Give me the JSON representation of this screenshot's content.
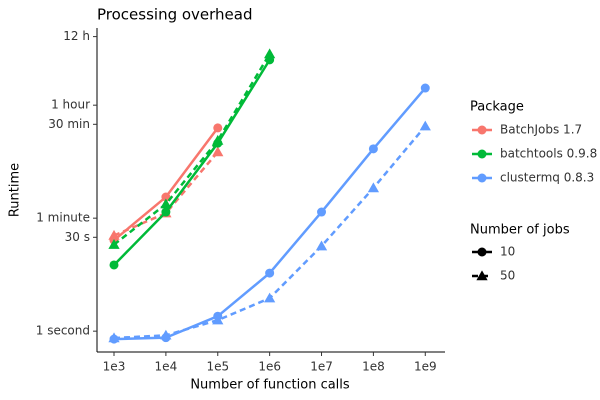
{
  "chart_data": {
    "type": "line",
    "title": "Processing overhead",
    "x_label": "Number of function calls",
    "y_label": "Runtime",
    "log_x": true,
    "log_y": true,
    "x": [
      1000,
      10000,
      100000,
      1000000,
      10000000,
      100000000,
      1000000000
    ],
    "xlim": [
      470,
      2400000000
    ],
    "xticks": [
      {
        "value": 1000,
        "label": "1e3"
      },
      {
        "value": 10000,
        "label": "1e4"
      },
      {
        "value": 100000,
        "label": "1e5"
      },
      {
        "value": 1000000,
        "label": "1e6"
      },
      {
        "value": 10000000,
        "label": "1e7"
      },
      {
        "value": 100000000,
        "label": "1e8"
      },
      {
        "value": 1000000000,
        "label": "1e9"
      }
    ],
    "ylim": [
      0.47,
      59000
    ],
    "yticks": [
      {
        "value": 1,
        "label": "1 second"
      },
      {
        "value": 30,
        "label": "30 s"
      },
      {
        "value": 60,
        "label": "1 minute"
      },
      {
        "value": 1800,
        "label": "30 min"
      },
      {
        "value": 3600,
        "label": "1 hour"
      },
      {
        "value": 43200,
        "label": "12 h"
      }
    ],
    "legend_title": "Package",
    "series": [
      {
        "name": "BatchJobs 1.7",
        "color": "#f8766d",
        "values_by_jobs": [
          [
            27,
            129,
            1580,
            null,
            null,
            null,
            null
          ],
          [
            32,
            72,
            660,
            null,
            null,
            null,
            null
          ]
        ]
      },
      {
        "name": "batchtools 0.9.8",
        "color": "#00ba38",
        "values_by_jobs": [
          [
            11,
            75,
            910,
            18600,
            null,
            null,
            null
          ],
          [
            23,
            100,
            1000,
            23000,
            null,
            null,
            null
          ]
        ]
      },
      {
        "name": "clustermq 0.8.3",
        "color": "#619cff",
        "values_by_jobs": [
          [
            0.75,
            0.79,
            1.72,
            8.2,
            75,
            740,
            6700
          ],
          [
            0.78,
            0.86,
            1.49,
            3.3,
            21.8,
            179,
            1680
          ]
        ]
      }
    ],
    "jobs_legend": {
      "title": "Number of jobs",
      "entries": [
        "10",
        "50"
      ],
      "shapes": [
        "circle",
        "triangle"
      ],
      "dashes": [
        "solid",
        "dashed"
      ]
    }
  }
}
